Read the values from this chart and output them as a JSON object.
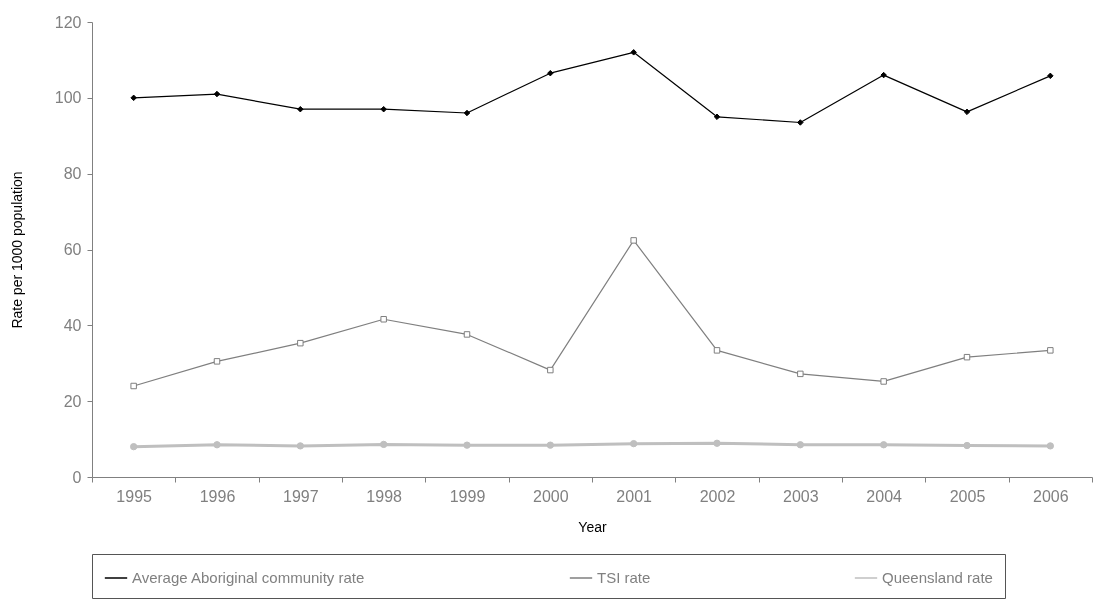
{
  "chart_data": {
    "type": "line",
    "xlabel": "Year",
    "ylabel": "Rate per 1000 population",
    "categories": [
      "1995",
      "1996",
      "1997",
      "1998",
      "1999",
      "2000",
      "2001",
      "2002",
      "2003",
      "2004",
      "2005",
      "2006"
    ],
    "series": [
      {
        "name": "Average Aboriginal community rate",
        "color": "#000000",
        "marker": "diamond",
        "values": [
          100,
          101,
          97,
          97,
          96,
          106.5,
          112,
          95,
          93.5,
          106,
          96.3,
          105.8
        ]
      },
      {
        "name": "TSI rate",
        "color": "#7f7f7f",
        "marker": "square",
        "values": [
          24,
          30.5,
          35.3,
          41.6,
          37.6,
          28.2,
          62.4,
          33.4,
          27.2,
          25.2,
          31.6,
          33.4
        ]
      },
      {
        "name": "Queensland rate",
        "color": "#bfbfbf",
        "marker": "circle",
        "values": [
          8,
          8.5,
          8.2,
          8.6,
          8.4,
          8.4,
          8.8,
          8.9,
          8.5,
          8.5,
          8.3,
          8.2
        ]
      }
    ],
    "ylim": [
      0,
      120
    ],
    "yticks": [
      0,
      20,
      40,
      60,
      80,
      100,
      120
    ],
    "grid": false,
    "legend": "bottom"
  }
}
